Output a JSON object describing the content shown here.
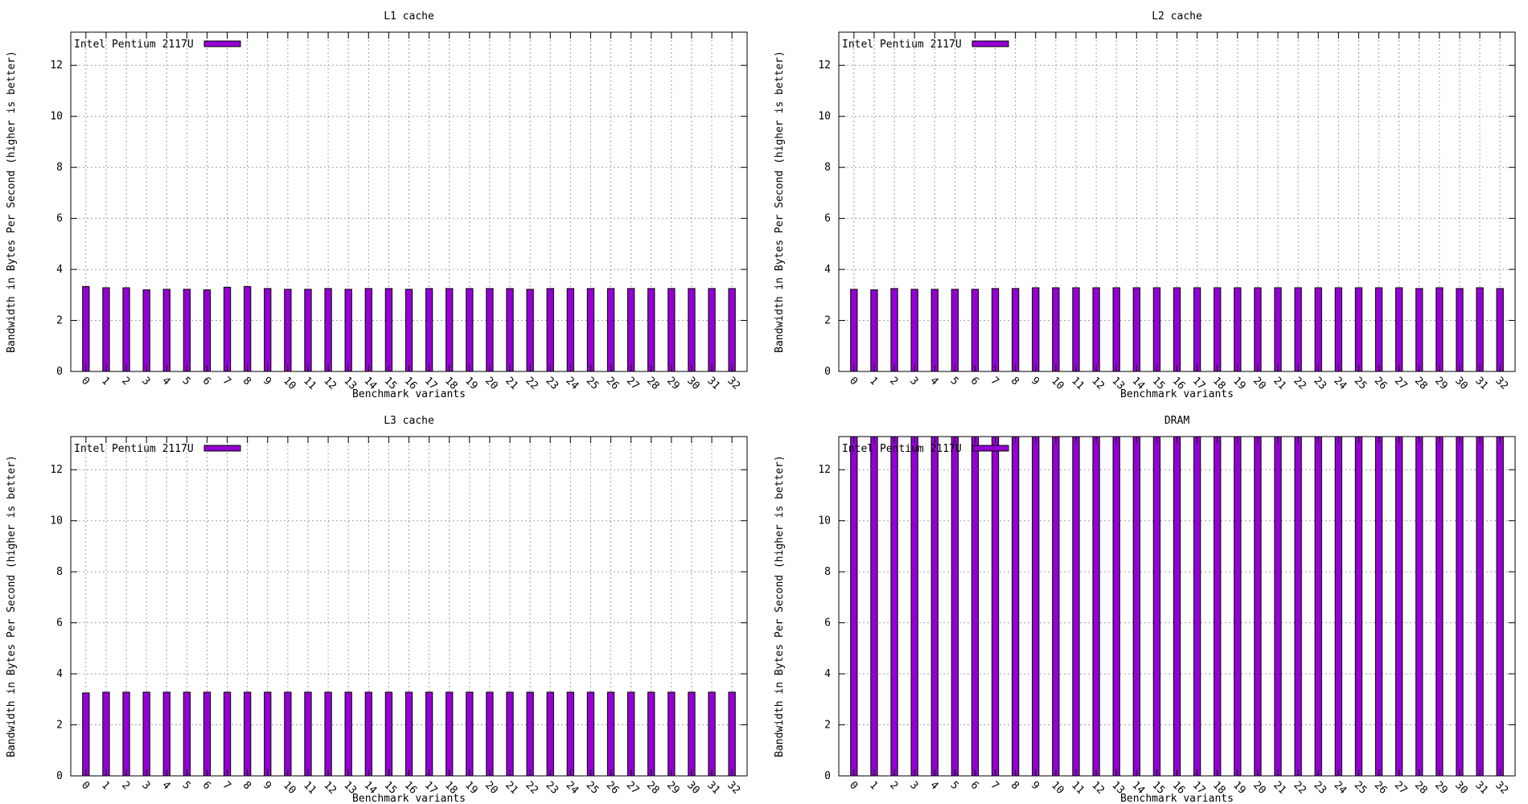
{
  "chart_data": [
    {
      "type": "bar",
      "title": "L1 cache",
      "xlabel": "Benchmark variants",
      "ylabel": "Bandwidth in Bytes Per Second (higher is better)",
      "ylim": [
        0,
        13.3
      ],
      "yticks": [
        0,
        2,
        4,
        6,
        8,
        10,
        12
      ],
      "grid": true,
      "legend_position": "top-left",
      "categories": [
        "0",
        "1",
        "2",
        "3",
        "4",
        "5",
        "6",
        "7",
        "8",
        "9",
        "10",
        "11",
        "12",
        "13",
        "14",
        "15",
        "16",
        "17",
        "18",
        "19",
        "20",
        "21",
        "22",
        "23",
        "24",
        "25",
        "26",
        "27",
        "28",
        "29",
        "30",
        "31",
        "32"
      ],
      "series": [
        {
          "name": "Intel Pentium 2117U",
          "color": "#9400d3",
          "values": [
            3.33,
            3.28,
            3.28,
            3.2,
            3.22,
            3.22,
            3.2,
            3.3,
            3.33,
            3.25,
            3.22,
            3.22,
            3.25,
            3.22,
            3.25,
            3.25,
            3.22,
            3.25,
            3.25,
            3.25,
            3.25,
            3.25,
            3.22,
            3.25,
            3.25,
            3.25,
            3.25,
            3.25,
            3.25,
            3.25,
            3.25,
            3.25,
            3.25
          ]
        }
      ]
    },
    {
      "type": "bar",
      "title": "L2 cache",
      "xlabel": "Benchmark variants",
      "ylabel": "Bandwidth in Bytes Per Second (higher is better)",
      "ylim": [
        0,
        13.3
      ],
      "yticks": [
        0,
        2,
        4,
        6,
        8,
        10,
        12
      ],
      "grid": true,
      "legend_position": "top-left",
      "categories": [
        "0",
        "1",
        "2",
        "3",
        "4",
        "5",
        "6",
        "7",
        "8",
        "9",
        "10",
        "11",
        "12",
        "13",
        "14",
        "15",
        "16",
        "17",
        "18",
        "19",
        "20",
        "21",
        "22",
        "23",
        "24",
        "25",
        "26",
        "27",
        "28",
        "29",
        "30",
        "31",
        "32"
      ],
      "series": [
        {
          "name": "Intel Pentium 2117U",
          "color": "#9400d3",
          "values": [
            3.22,
            3.2,
            3.25,
            3.22,
            3.22,
            3.22,
            3.22,
            3.25,
            3.25,
            3.28,
            3.28,
            3.28,
            3.28,
            3.28,
            3.28,
            3.28,
            3.28,
            3.28,
            3.28,
            3.28,
            3.28,
            3.28,
            3.28,
            3.28,
            3.28,
            3.28,
            3.28,
            3.28,
            3.25,
            3.28,
            3.25,
            3.28,
            3.25
          ]
        }
      ]
    },
    {
      "type": "bar",
      "title": "L3 cache",
      "xlabel": "Benchmark variants",
      "ylabel": "Bandwidth in Bytes Per Second (higher is better)",
      "ylim": [
        0,
        13.3
      ],
      "yticks": [
        0,
        2,
        4,
        6,
        8,
        10,
        12
      ],
      "grid": true,
      "legend_position": "top-left",
      "categories": [
        "0",
        "1",
        "2",
        "3",
        "4",
        "5",
        "6",
        "7",
        "8",
        "9",
        "10",
        "11",
        "12",
        "13",
        "14",
        "15",
        "16",
        "17",
        "18",
        "19",
        "20",
        "21",
        "22",
        "23",
        "24",
        "25",
        "26",
        "27",
        "28",
        "29",
        "30",
        "31",
        "32"
      ],
      "series": [
        {
          "name": "Intel Pentium 2117U",
          "color": "#9400d3",
          "values": [
            3.25,
            3.28,
            3.28,
            3.28,
            3.28,
            3.28,
            3.28,
            3.28,
            3.28,
            3.28,
            3.28,
            3.28,
            3.28,
            3.28,
            3.28,
            3.28,
            3.28,
            3.28,
            3.28,
            3.28,
            3.28,
            3.28,
            3.28,
            3.28,
            3.28,
            3.28,
            3.28,
            3.28,
            3.28,
            3.28,
            3.28,
            3.28,
            3.28
          ]
        }
      ]
    },
    {
      "type": "bar",
      "title": "DRAM",
      "xlabel": "Benchmark variants",
      "ylabel": "Bandwidth in Bytes Per Second (higher is better)",
      "ylim": [
        0,
        13.3
      ],
      "yticks": [
        0,
        2,
        4,
        6,
        8,
        10,
        12
      ],
      "grid": true,
      "legend_position": "top-left",
      "note": "bars exceed top of y-axis range",
      "categories": [
        "0",
        "1",
        "2",
        "3",
        "4",
        "5",
        "6",
        "7",
        "8",
        "9",
        "10",
        "11",
        "12",
        "13",
        "14",
        "15",
        "16",
        "17",
        "18",
        "19",
        "20",
        "21",
        "22",
        "23",
        "24",
        "25",
        "26",
        "27",
        "28",
        "29",
        "30",
        "31",
        "32"
      ],
      "series": [
        {
          "name": "Intel Pentium 2117U",
          "color": "#9400d3",
          "values": [
            14,
            14,
            14,
            14,
            14,
            14,
            14,
            14,
            14,
            14,
            14,
            14,
            14,
            14,
            14,
            14,
            14,
            14,
            14,
            14,
            14,
            14,
            14,
            14,
            14,
            14,
            14,
            14,
            14,
            14,
            14,
            14,
            14
          ]
        }
      ]
    }
  ]
}
